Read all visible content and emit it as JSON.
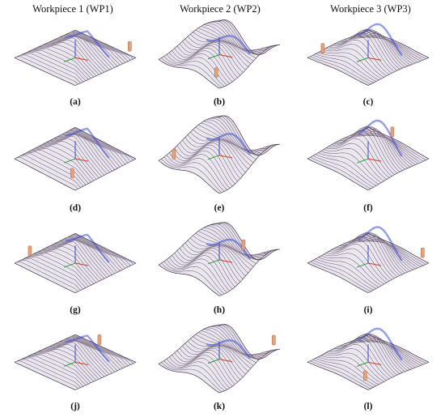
{
  "figure": {
    "columns": [
      {
        "title": "Workpiece 1 (WP1)",
        "shape": "pyramid"
      },
      {
        "title": "Workpiece 2 (WP2)",
        "shape": "wave"
      },
      {
        "title": "Workpiece 3 (WP3)",
        "shape": "dome"
      }
    ],
    "panel_labels": [
      "(a)",
      "(b)",
      "(c)",
      "(d)",
      "(e)",
      "(f)",
      "(g)",
      "(h)",
      "(i)",
      "(j)",
      "(k)",
      "(l)"
    ]
  },
  "colors": {
    "toolpath_dark": "#5a4a66",
    "toolpath_light": "#d9cfd8",
    "highlight_blue": "#3b4ed8",
    "axis_x": "#d33a2a",
    "axis_y": "#2c9a3a",
    "axis_z": "#3a46c8",
    "tool": "#e8a27a"
  }
}
